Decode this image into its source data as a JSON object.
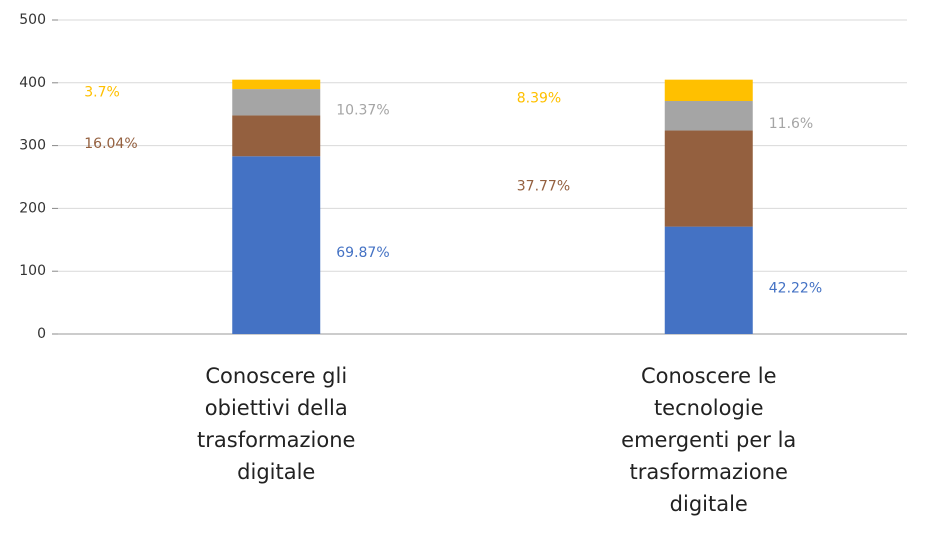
{
  "chart_data": {
    "type": "stacked_bar",
    "categories": [
      "Conoscere gli obiettivi della trasformazione digitale",
      "Conoscere le tecnologie emergenti per la trasformazione digitale"
    ],
    "series": [
      {
        "color": "#4472c4",
        "values": [
          283,
          171
        ],
        "value_labels": [
          "69.87%",
          "42.22%"
        ]
      },
      {
        "color": "#94603f",
        "values": [
          65,
          153
        ],
        "value_labels": [
          "16.04%",
          "37.77%"
        ]
      },
      {
        "color": "#a5a5a5",
        "values": [
          42,
          47
        ],
        "value_labels": [
          "10.37%",
          "11.6%"
        ]
      },
      {
        "color": "#ffc000",
        "values": [
          15,
          34
        ],
        "value_labels": [
          "3.7%",
          "8.39%"
        ]
      }
    ],
    "ylim": [
      0,
      500
    ],
    "yticks": [
      0,
      100,
      200,
      300,
      400,
      500
    ],
    "grid": true
  }
}
